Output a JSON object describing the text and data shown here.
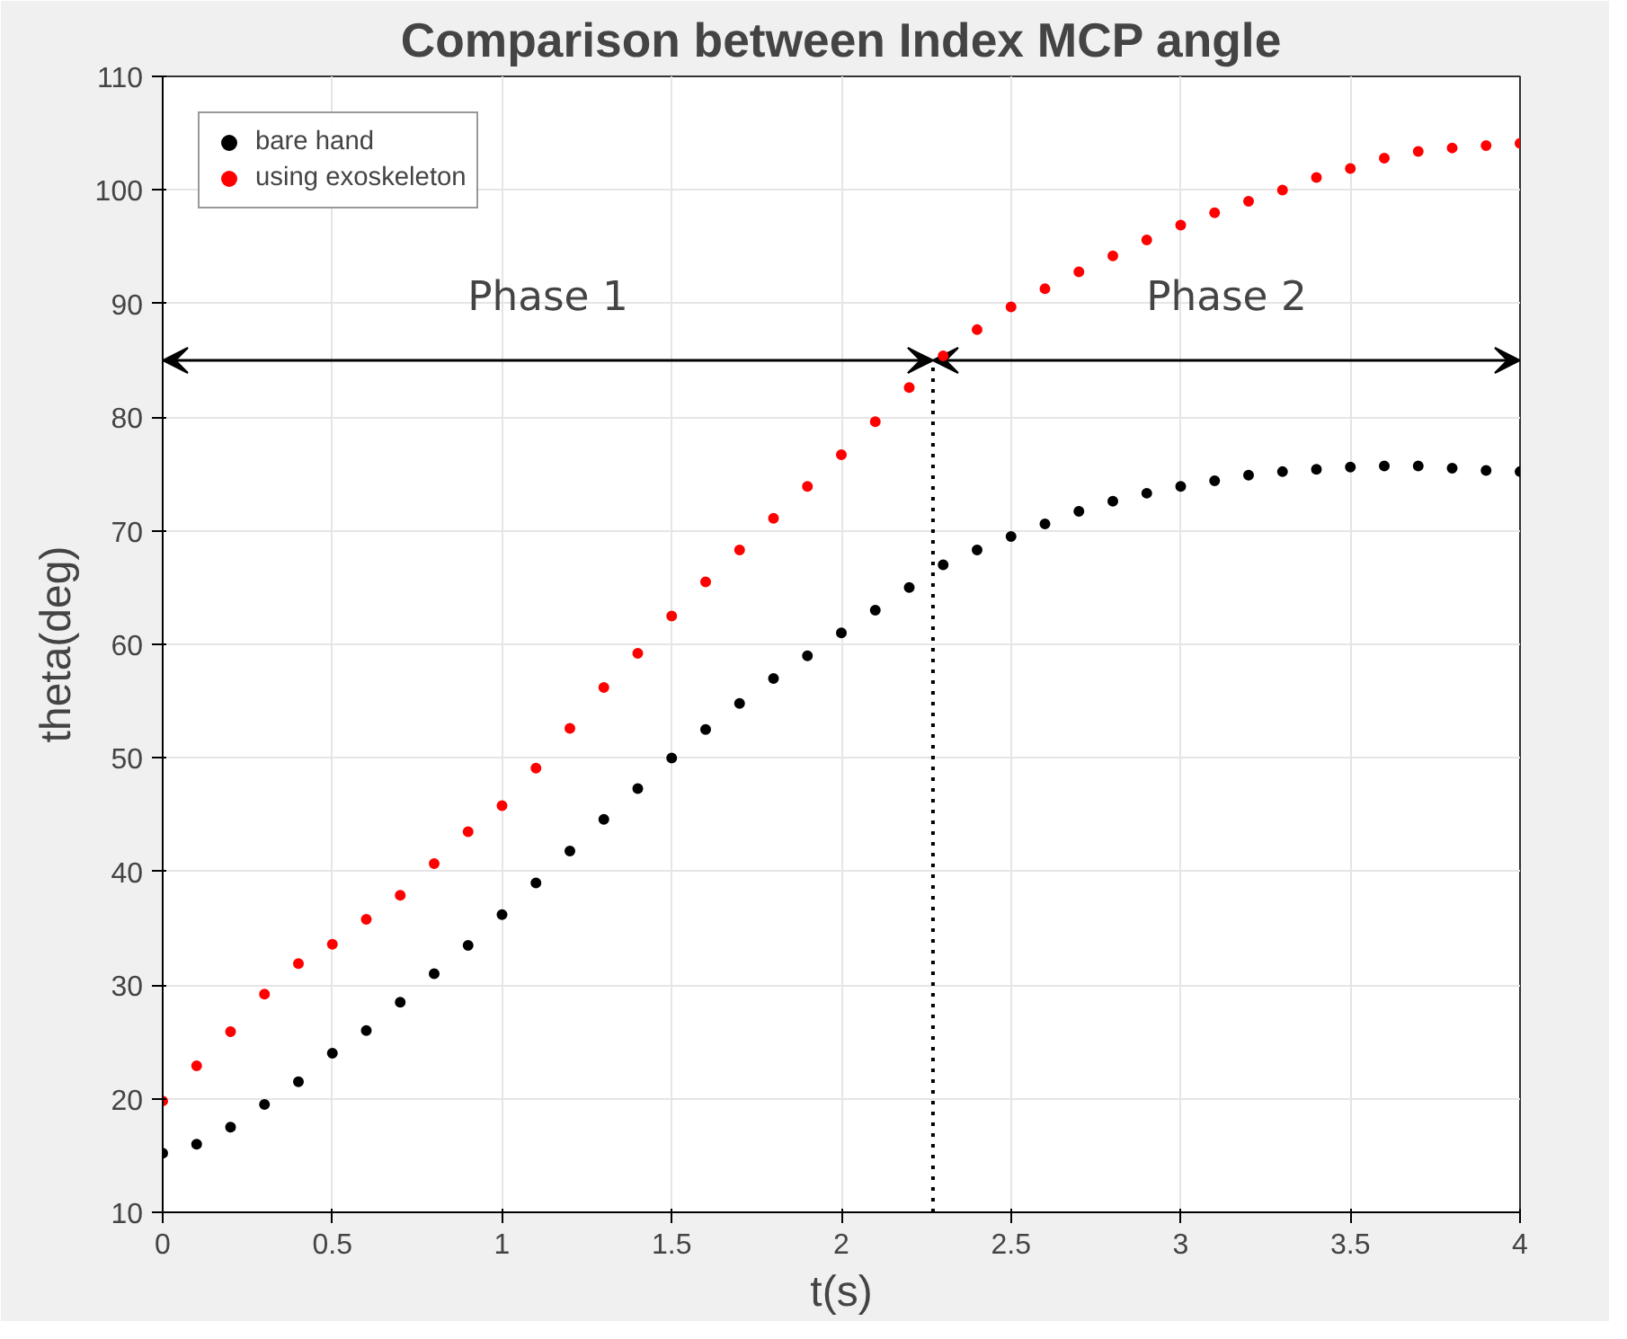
{
  "chart_data": {
    "type": "scatter",
    "title": "Comparison between Index MCP angle",
    "xlabel": "t(s)",
    "ylabel": "theta(deg)",
    "x": [
      0,
      0.1,
      0.2,
      0.3,
      0.4,
      0.5,
      0.6,
      0.7,
      0.8,
      0.9,
      1.0,
      1.1,
      1.2,
      1.3,
      1.4,
      1.5,
      1.6,
      1.7,
      1.8,
      1.9,
      2.0,
      2.1,
      2.2,
      2.3,
      2.4,
      2.5,
      2.6,
      2.7,
      2.8,
      2.9,
      3.0,
      3.1,
      3.2,
      3.3,
      3.4,
      3.5,
      3.6,
      3.7,
      3.8,
      3.9,
      4.0
    ],
    "series": [
      {
        "name": "bare hand",
        "color": "#000000",
        "values": [
          15.2,
          16.0,
          17.5,
          19.5,
          21.5,
          24.0,
          26.0,
          28.5,
          31.0,
          33.5,
          36.2,
          39.0,
          41.8,
          44.6,
          47.3,
          50.0,
          52.5,
          54.8,
          57.0,
          59.0,
          61.0,
          63.0,
          65.0,
          67.0,
          68.3,
          69.5,
          70.6,
          71.7,
          72.6,
          73.3,
          73.9,
          74.4,
          74.9,
          75.2,
          75.4,
          75.6,
          75.7,
          75.7,
          75.5,
          75.3,
          75.2
        ]
      },
      {
        "name": "using exoskeleton",
        "color": "#ff0000",
        "values": [
          19.8,
          22.9,
          25.9,
          29.2,
          31.9,
          33.6,
          35.8,
          37.9,
          40.7,
          43.5,
          45.8,
          49.1,
          52.6,
          56.2,
          59.2,
          62.5,
          65.5,
          68.3,
          71.1,
          73.9,
          76.7,
          79.6,
          82.6,
          85.4,
          87.7,
          89.7,
          91.3,
          92.8,
          94.2,
          95.6,
          96.9,
          98.0,
          99.0,
          100.0,
          101.1,
          101.9,
          102.8,
          103.4,
          103.7,
          103.9,
          104.1
        ]
      }
    ],
    "xlim": [
      0,
      4
    ],
    "xticks": [
      0,
      0.5,
      1,
      1.5,
      2,
      2.5,
      3,
      3.5,
      4
    ],
    "ylim": [
      10,
      110
    ],
    "yticks": [
      10,
      20,
      30,
      40,
      50,
      60,
      70,
      80,
      90,
      100,
      110
    ],
    "ref_lines": [
      {
        "axis": "x",
        "value": 2.27,
        "line_style": "dotted"
      }
    ],
    "annotations": [
      "Phase 1",
      "Phase 2"
    ],
    "grid": true,
    "legend": "top left",
    "marker": "circle"
  }
}
